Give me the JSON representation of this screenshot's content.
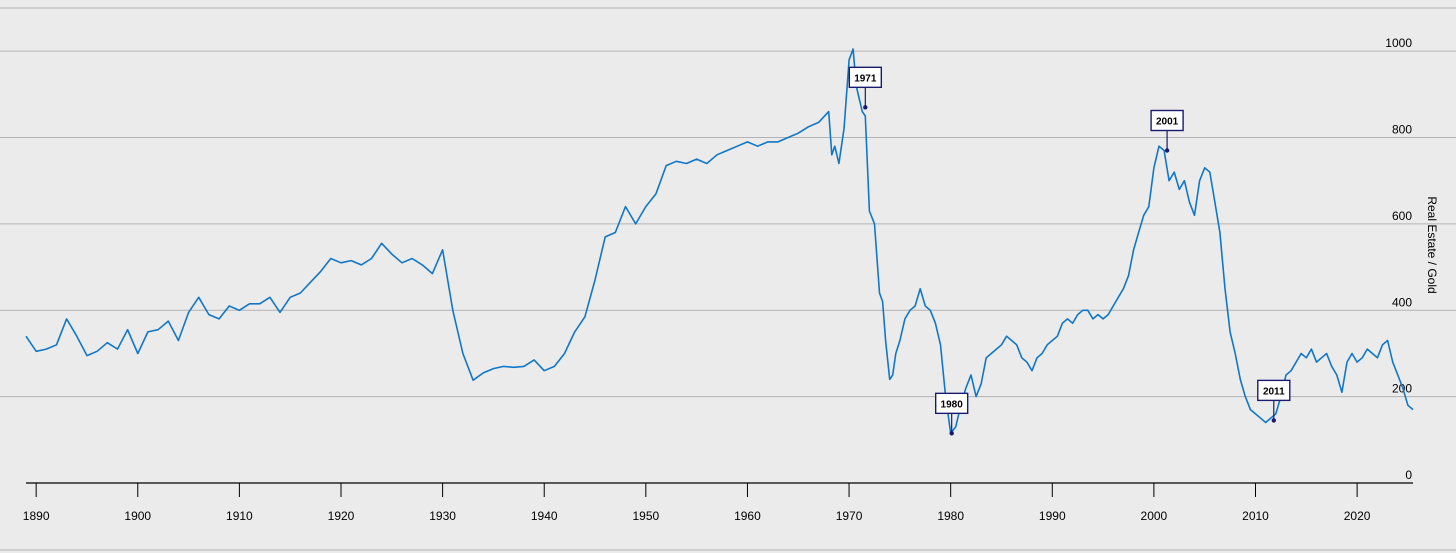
{
  "chart_data": {
    "type": "line",
    "title": "",
    "xlabel": "",
    "ylabel": "Real Estate / Gold",
    "xlim": [
      1889,
      2025.5
    ],
    "ylim": [
      0,
      1100
    ],
    "x_ticks": [
      1890,
      1900,
      1910,
      1920,
      1930,
      1940,
      1950,
      1960,
      1970,
      1980,
      1990,
      2000,
      2010,
      2020
    ],
    "y_ticks": [
      0,
      200,
      400,
      600,
      800,
      1000
    ],
    "grid": true,
    "colors": {
      "series": "#1077c8",
      "annotation": "#1a1a6e",
      "background": "#ebebeb"
    },
    "series": [
      {
        "name": "",
        "x": [
          1889,
          1890,
          1891,
          1892,
          1893,
          1894,
          1895,
          1896,
          1897,
          1898,
          1899,
          1900,
          1901,
          1902,
          1903,
          1904,
          1905,
          1906,
          1907,
          1908,
          1909,
          1910,
          1911,
          1912,
          1913,
          1914,
          1915,
          1916,
          1917,
          1918,
          1919,
          1920,
          1921,
          1922,
          1923,
          1924,
          1925,
          1926,
          1927,
          1928,
          1929,
          1930,
          1931,
          1932,
          1933,
          1934,
          1935,
          1936,
          1937,
          1938,
          1939,
          1940,
          1941,
          1942,
          1943,
          1944,
          1945,
          1946,
          1947,
          1948,
          1949,
          1950,
          1951,
          1952,
          1953,
          1954,
          1955,
          1956,
          1957,
          1958,
          1959,
          1960,
          1961,
          1962,
          1963,
          1964,
          1965,
          1966,
          1967,
          1968,
          1968.3,
          1968.6,
          1969,
          1969.5,
          1970,
          1970.4,
          1970.7,
          1971,
          1971.3,
          1971.6,
          1972,
          1972.5,
          1973,
          1973.3,
          1973.6,
          1974,
          1974.3,
          1974.6,
          1975,
          1975.5,
          1976,
          1976.5,
          1977,
          1977.5,
          1978,
          1978.5,
          1979,
          1979.5,
          1980,
          1980.5,
          1981,
          1981.5,
          1982,
          1982.5,
          1983,
          1983.5,
          1984,
          1984.5,
          1985,
          1985.5,
          1986,
          1986.5,
          1987,
          1987.5,
          1988,
          1988.5,
          1989,
          1989.5,
          1990,
          1990.5,
          1991,
          1991.5,
          1992,
          1992.5,
          1993,
          1993.5,
          1994,
          1994.5,
          1995,
          1995.5,
          1996,
          1996.5,
          1997,
          1997.5,
          1998,
          1998.5,
          1999,
          1999.5,
          2000,
          2000.5,
          2001,
          2001.5,
          2002,
          2002.5,
          2003,
          2003.5,
          2004,
          2004.5,
          2005,
          2005.5,
          2006,
          2006.5,
          2007,
          2007.5,
          2008,
          2008.5,
          2009,
          2009.5,
          2010,
          2010.5,
          2011,
          2011.5,
          2012,
          2012.5,
          2013,
          2013.5,
          2014,
          2014.5,
          2015,
          2015.5,
          2016,
          2016.5,
          2017,
          2017.5,
          2018,
          2018.5,
          2019,
          2019.5,
          2020,
          2020.5,
          2021,
          2021.5,
          2022,
          2022.5,
          2023,
          2023.5,
          2024,
          2024.5,
          2025,
          2025.5
        ],
        "y": [
          340,
          305,
          310,
          320,
          380,
          340,
          295,
          305,
          325,
          310,
          355,
          300,
          350,
          355,
          375,
          330,
          395,
          430,
          390,
          380,
          410,
          400,
          415,
          415,
          430,
          395,
          430,
          440,
          465,
          490,
          520,
          510,
          515,
          505,
          520,
          555,
          530,
          510,
          520,
          505,
          485,
          540,
          400,
          300,
          238,
          255,
          265,
          270,
          268,
          270,
          285,
          260,
          270,
          300,
          350,
          385,
          470,
          570,
          580,
          640,
          600,
          640,
          670,
          735,
          745,
          740,
          750,
          740,
          760,
          770,
          780,
          790,
          780,
          790,
          790,
          800,
          810,
          825,
          835,
          860,
          760,
          780,
          740,
          820,
          980,
          1005,
          920,
          890,
          860,
          850,
          630,
          600,
          440,
          420,
          330,
          240,
          250,
          300,
          330,
          380,
          400,
          410,
          450,
          410,
          400,
          370,
          320,
          200,
          115,
          130,
          180,
          220,
          250,
          200,
          230,
          290,
          300,
          310,
          320,
          340,
          330,
          320,
          290,
          280,
          260,
          290,
          300,
          320,
          330,
          340,
          370,
          380,
          370,
          390,
          400,
          400,
          380,
          390,
          380,
          390,
          410,
          430,
          450,
          480,
          540,
          580,
          620,
          640,
          730,
          780,
          770,
          700,
          720,
          680,
          700,
          650,
          620,
          700,
          730,
          720,
          650,
          580,
          450,
          350,
          300,
          240,
          200,
          170,
          160,
          150,
          140,
          150,
          160,
          200,
          250,
          260,
          280,
          300,
          290,
          310,
          280,
          290,
          300,
          270,
          250,
          210,
          280,
          300,
          280,
          290,
          310,
          300,
          290,
          320,
          330,
          280,
          250,
          220,
          180,
          170
        ]
      }
    ],
    "annotations": [
      {
        "label": "1971",
        "x": 1971.6,
        "y": 870
      },
      {
        "label": "1980",
        "x": 1980.1,
        "y": 115
      },
      {
        "label": "2001",
        "x": 2001.3,
        "y": 770
      },
      {
        "label": "2011",
        "x": 2011.8,
        "y": 145
      }
    ]
  }
}
